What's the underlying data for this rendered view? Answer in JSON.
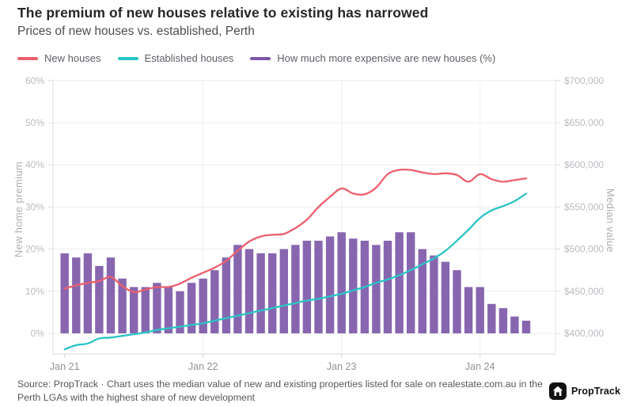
{
  "header": {
    "title": "The premium of new houses relative to existing has narrowed",
    "subtitle": "Prices of new houses vs. established, Perth"
  },
  "legend": {
    "items": [
      {
        "label": "New houses",
        "color": "#ec5f6d"
      },
      {
        "label": "Established houses",
        "color": "#2bc4c6"
      },
      {
        "label": "How much more expensive are new houses (%)",
        "color": "#7c58a8"
      }
    ]
  },
  "chart_data": {
    "type": "bar",
    "subtype": "combo-bar-line",
    "x": [
      "Jan 21",
      "Feb 21",
      "Mar 21",
      "Apr 21",
      "May 21",
      "Jun 21",
      "Jul 21",
      "Aug 21",
      "Sep 21",
      "Oct 21",
      "Nov 21",
      "Dec 21",
      "Jan 22",
      "Feb 22",
      "Mar 22",
      "Apr 22",
      "May 22",
      "Jun 22",
      "Jul 22",
      "Aug 22",
      "Sep 22",
      "Oct 22",
      "Nov 22",
      "Dec 22",
      "Jan 23",
      "Feb 23",
      "Mar 23",
      "Apr 23",
      "May 23",
      "Jun 23",
      "Jul 23",
      "Aug 23",
      "Sep 23",
      "Oct 23",
      "Nov 23",
      "Dec 23",
      "Jan 24",
      "Feb 24",
      "Mar 24",
      "Apr 24",
      "May 24"
    ],
    "x_ticks": [
      "Jan 21",
      "Jan 22",
      "Jan 23",
      "Jan 24"
    ],
    "series": [
      {
        "name": "New houses",
        "type": "line",
        "axis": "right",
        "color": "#ec5f6d",
        "values": [
          453000,
          457000,
          460000,
          462000,
          467000,
          456000,
          449000,
          452000,
          455000,
          455000,
          459000,
          466000,
          472000,
          478000,
          486000,
          498000,
          509000,
          515000,
          517000,
          518000,
          525000,
          535000,
          550000,
          562000,
          572000,
          566000,
          565000,
          573000,
          589000,
          594000,
          594000,
          591000,
          589000,
          590000,
          588000,
          580000,
          589000,
          583000,
          580000,
          582000,
          584000
        ]
      },
      {
        "name": "Established houses",
        "type": "line",
        "axis": "right",
        "color": "#2bc4c6",
        "values": [
          381000,
          386000,
          388000,
          394000,
          395000,
          397000,
          399000,
          401000,
          404000,
          406000,
          408000,
          410000,
          412000,
          415000,
          418000,
          421000,
          424000,
          427000,
          430000,
          433000,
          436000,
          439000,
          441000,
          444000,
          447000,
          451000,
          455000,
          460000,
          464000,
          469000,
          475000,
          482000,
          489000,
          498000,
          510000,
          523000,
          537000,
          546000,
          551000,
          557000,
          566000
        ]
      },
      {
        "name": "How much more expensive are new houses (%)",
        "type": "bar",
        "axis": "left",
        "color": "#8766af",
        "values": [
          19,
          18,
          19,
          16,
          18,
          13,
          11,
          11,
          12,
          11,
          10,
          12,
          13,
          15,
          18,
          21,
          20,
          19,
          19,
          20,
          21,
          22,
          22,
          23,
          24,
          22.5,
          22,
          21,
          22,
          24,
          24,
          20,
          18.5,
          17,
          15,
          11,
          11,
          7,
          6,
          4,
          3
        ]
      }
    ],
    "left_axis": {
      "title": "New home premium",
      "ticks": [
        "0%",
        "10%",
        "20%",
        "30%",
        "40%",
        "50%",
        "60%"
      ],
      "min": 0,
      "max": 60,
      "unit": "%"
    },
    "right_axis": {
      "title": "Median value",
      "ticks": [
        "$400,000",
        "$450,000",
        "$500,000",
        "$550,000",
        "$600,000",
        "$650,000",
        "$700,000"
      ],
      "min": 400000,
      "max": 700000,
      "unit": "$"
    },
    "grid": true,
    "legend_position": "top"
  },
  "footer": {
    "source": "Source: PropTrack · Chart uses the median value of new and existing properties listed for sale on realestate.com.au in the Perth LGAs with the highest share of new development",
    "logo_text": "PropTrack"
  }
}
